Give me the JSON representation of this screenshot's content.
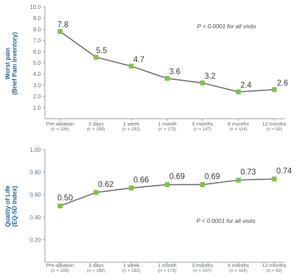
{
  "chart_data": [
    {
      "type": "line",
      "ylabel_line1": "Worst pain",
      "ylabel_line2": "(Brief Pain Inventory)",
      "annotation": "P < 0.0001 for all visits",
      "ylim": [
        0,
        10
      ],
      "yticks": [
        "1.0",
        "2.0",
        "3.0",
        "4.0",
        "5.0",
        "6.0",
        "7.0",
        "8.0",
        "9.0",
        "10.0"
      ],
      "categories": [
        "Pre-ablation",
        "3 days",
        "1 week",
        "1 month",
        "3 months",
        "6 months",
        "12 months"
      ],
      "n_labels": [
        "(n = 206)",
        "(n = 199)",
        "(n = 192)",
        "(n = 173)",
        "(n = 147)",
        "(n = 114)",
        "(n = 59)"
      ],
      "values": [
        7.8,
        5.5,
        4.7,
        3.6,
        3.2,
        2.4,
        2.6
      ],
      "value_labels": [
        "7.8",
        "5.5",
        "4.7",
        "3.6",
        "3.2",
        "2.4",
        "2.6"
      ],
      "grid": false
    },
    {
      "type": "line",
      "ylabel_line1": "Quality of Life",
      "ylabel_line2": "(EQ-5D Index)",
      "annotation": "P < 0.0001 for all visits",
      "ylim": [
        0.0,
        1.0
      ],
      "yticks": [
        "0.20",
        "0.40",
        "0.60",
        "0.80",
        "1.00"
      ],
      "categories": [
        "Pre-ablation",
        "3 days",
        "1 week",
        "1 month",
        "3 months",
        "6 months",
        "12 months"
      ],
      "n_labels": [
        "(n = 205)",
        "(n = 199)",
        "(n = 192)",
        "(n = 173)",
        "(n = 147)",
        "(n = 114)",
        "(n = 59)"
      ],
      "values": [
        0.5,
        0.62,
        0.66,
        0.69,
        0.69,
        0.73,
        0.74
      ],
      "value_labels": [
        "0.50",
        "0.62",
        "0.66",
        "0.69",
        "0.69",
        "0.73",
        "0.74"
      ],
      "grid": false
    }
  ],
  "colors": {
    "line": "#666666",
    "marker": "#7dc242",
    "axis": "#8a9aa2",
    "ylabel": "#1f5f9a"
  }
}
